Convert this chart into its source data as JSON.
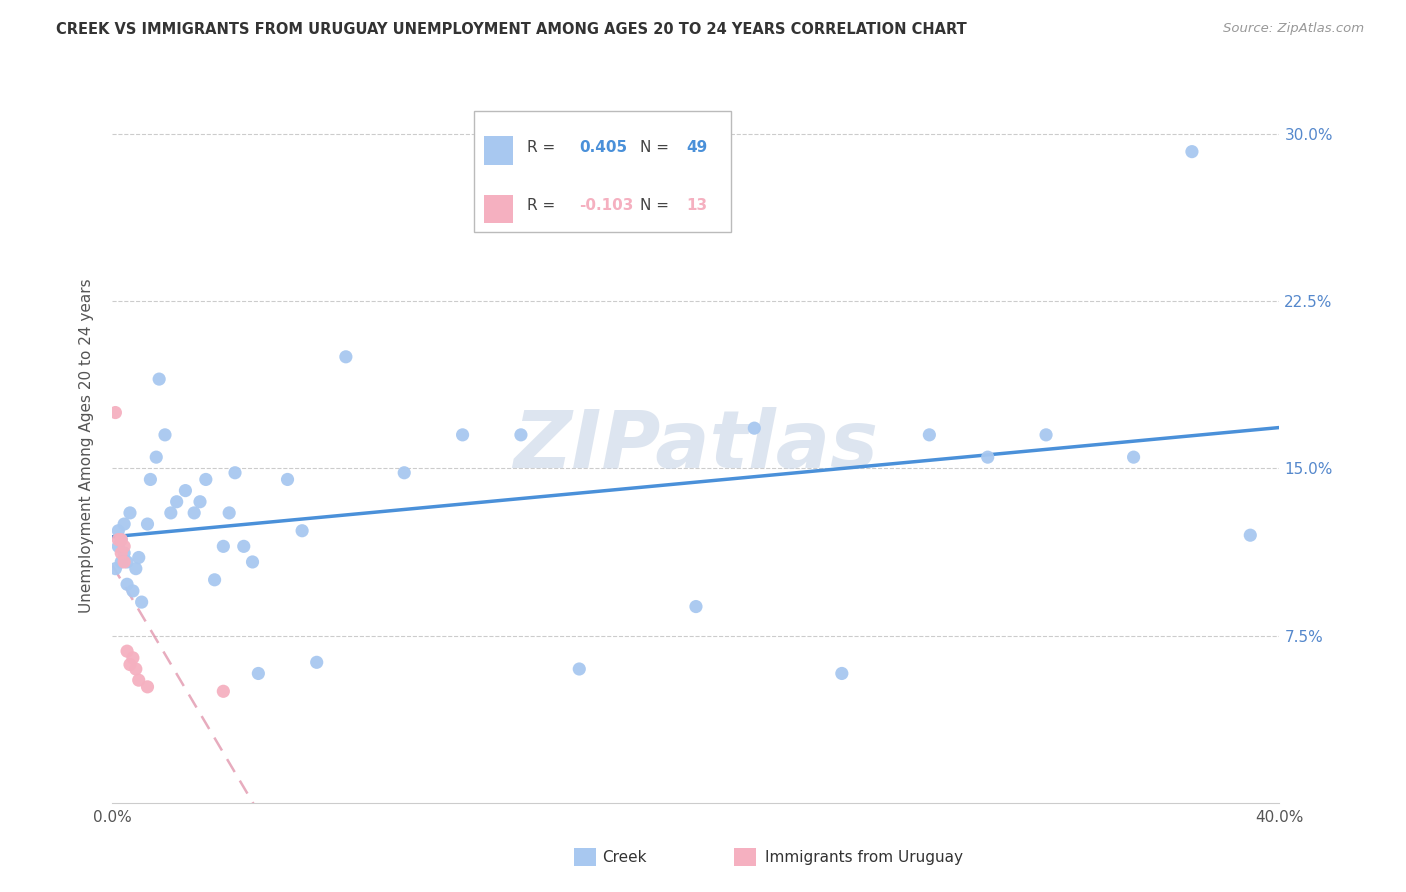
{
  "title": "CREEK VS IMMIGRANTS FROM URUGUAY UNEMPLOYMENT AMONG AGES 20 TO 24 YEARS CORRELATION CHART",
  "source": "Source: ZipAtlas.com",
  "ylabel": "Unemployment Among Ages 20 to 24 years",
  "xlim": [
    0.0,
    0.4
  ],
  "ylim": [
    0.0,
    0.32
  ],
  "creek_R": "0.405",
  "creek_N": "49",
  "uruguay_R": "-0.103",
  "uruguay_N": "13",
  "creek_color": "#a8c8f0",
  "creek_line_color": "#4a90d9",
  "uruguay_color": "#f5b0c0",
  "uruguay_line_color": "#e090a8",
  "watermark": "ZIPatlas",
  "watermark_color": "#ccd8e8",
  "creek_x": [
    0.001,
    0.002,
    0.002,
    0.003,
    0.003,
    0.004,
    0.004,
    0.005,
    0.005,
    0.006,
    0.007,
    0.008,
    0.009,
    0.01,
    0.012,
    0.013,
    0.015,
    0.016,
    0.018,
    0.02,
    0.022,
    0.025,
    0.028,
    0.03,
    0.032,
    0.035,
    0.038,
    0.04,
    0.042,
    0.045,
    0.048,
    0.05,
    0.06,
    0.065,
    0.07,
    0.08,
    0.1,
    0.12,
    0.14,
    0.16,
    0.2,
    0.22,
    0.25,
    0.28,
    0.3,
    0.32,
    0.35,
    0.37,
    0.39
  ],
  "creek_y": [
    0.105,
    0.115,
    0.122,
    0.108,
    0.118,
    0.112,
    0.125,
    0.098,
    0.108,
    0.13,
    0.095,
    0.105,
    0.11,
    0.09,
    0.125,
    0.145,
    0.155,
    0.19,
    0.165,
    0.13,
    0.135,
    0.14,
    0.13,
    0.135,
    0.145,
    0.1,
    0.115,
    0.13,
    0.148,
    0.115,
    0.108,
    0.058,
    0.145,
    0.122,
    0.063,
    0.2,
    0.148,
    0.165,
    0.165,
    0.06,
    0.088,
    0.168,
    0.058,
    0.165,
    0.155,
    0.165,
    0.155,
    0.292,
    0.12
  ],
  "uruguay_x": [
    0.001,
    0.002,
    0.003,
    0.003,
    0.004,
    0.004,
    0.005,
    0.006,
    0.007,
    0.008,
    0.009,
    0.012,
    0.038
  ],
  "uruguay_y": [
    0.175,
    0.118,
    0.112,
    0.118,
    0.108,
    0.115,
    0.068,
    0.062,
    0.065,
    0.06,
    0.055,
    0.052,
    0.05
  ]
}
